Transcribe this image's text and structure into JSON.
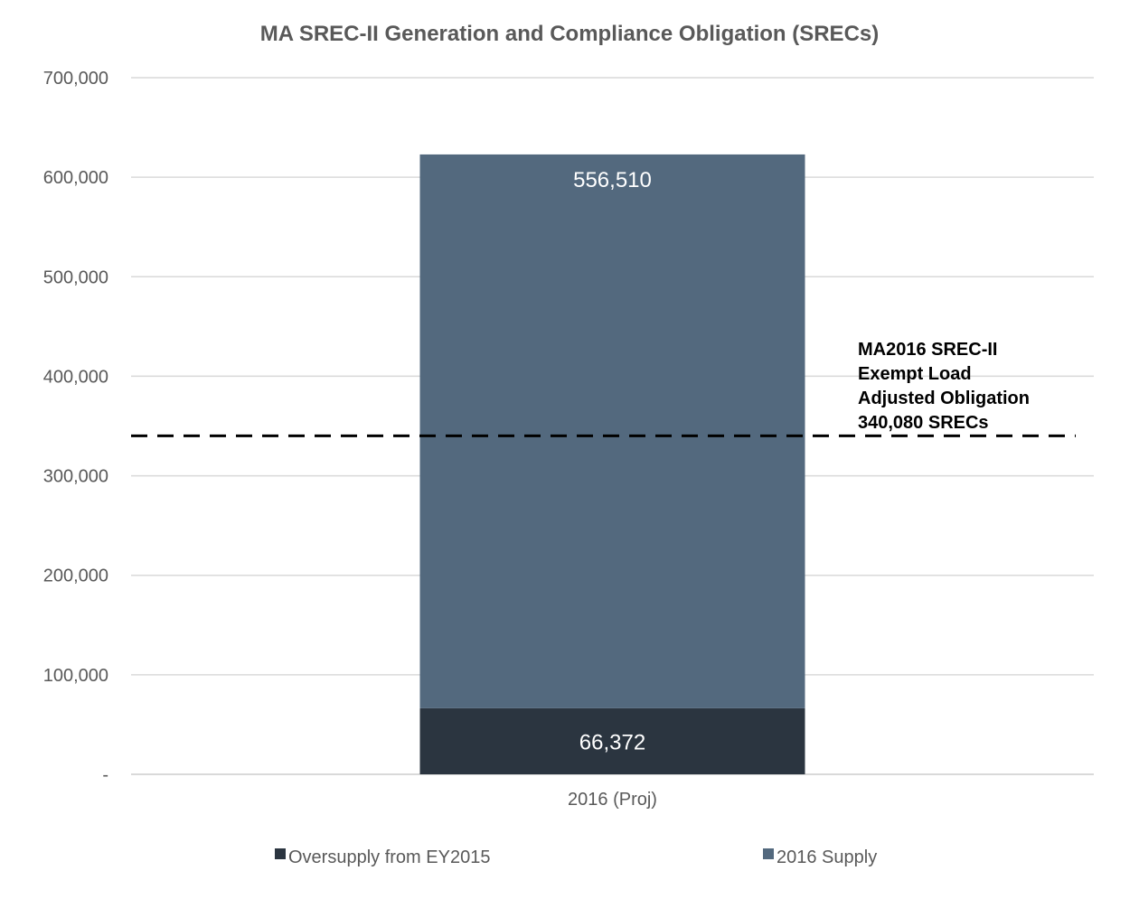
{
  "chart_data": {
    "type": "bar",
    "stacked": true,
    "title": "MA SREC-II Generation and Compliance Obligation (SRECs)",
    "categories": [
      "2016 (Proj)"
    ],
    "series": [
      {
        "name": "Oversupply from EY2015",
        "values": [
          66372
        ],
        "label": "66,372",
        "color": "#2b3540"
      },
      {
        "name": "2016 Supply",
        "values": [
          556510
        ],
        "label": "556,510",
        "color": "#53697e"
      }
    ],
    "ylim": [
      0,
      700000
    ],
    "yticks": [
      0,
      100000,
      200000,
      300000,
      400000,
      500000,
      600000,
      700000
    ],
    "ytick_labels": [
      "-",
      "100,000",
      "200,000",
      "300,000",
      "400,000",
      "500,000",
      "600,000",
      "700,000"
    ],
    "reference_line": {
      "value": 340080,
      "style": "dashed",
      "color": "#000000",
      "label_lines": [
        "MA2016 SREC-II",
        "Exempt Load",
        "Adjusted Obligation",
        "340,080 SRECs"
      ]
    },
    "grid": true,
    "legend_position": "bottom"
  }
}
